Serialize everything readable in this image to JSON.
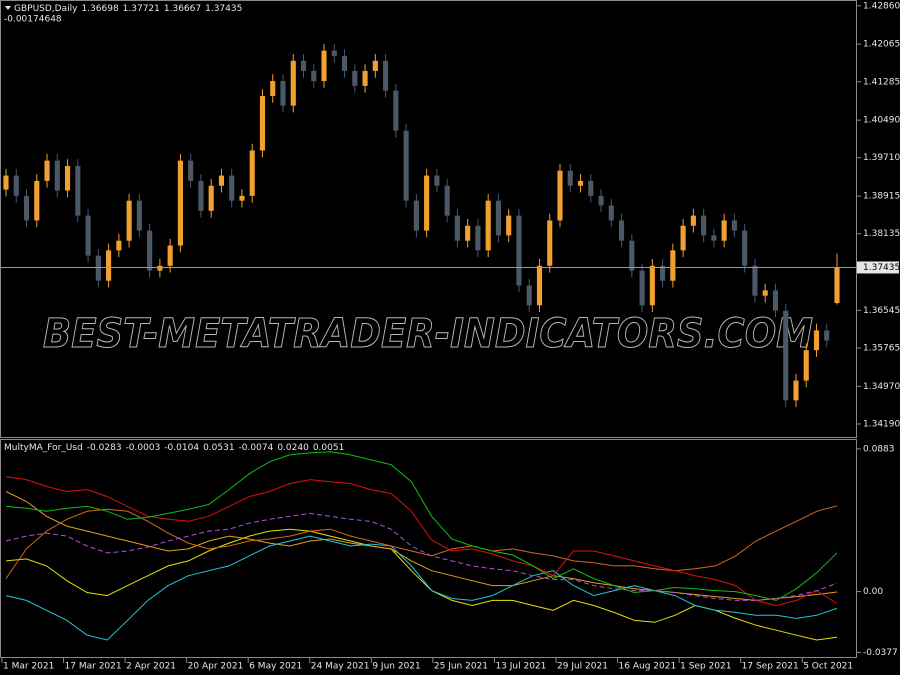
{
  "chart_data": [
    {
      "type": "candlestick",
      "symbol": "GBPUSD,Daily",
      "info_value": -0.00174648,
      "watermark": "BEST-METATRADER-INDICATORS.COM",
      "up_color": "#f0a030",
      "down_color": "#4b5867",
      "price_line_color": "#9a9a9a",
      "categories": [
        "1 Mar 2021",
        null,
        null,
        null,
        null,
        null,
        "17 Mar 2021",
        null,
        null,
        null,
        null,
        null,
        "2 Apr 2021",
        null,
        null,
        null,
        null,
        null,
        "20 Apr 2021",
        null,
        null,
        null,
        null,
        null,
        "6 May 2021",
        null,
        null,
        null,
        null,
        null,
        "24 May 2021",
        null,
        null,
        null,
        null,
        null,
        "9 Jun 2021",
        null,
        null,
        null,
        null,
        null,
        "25 Jun 2021",
        null,
        null,
        null,
        null,
        null,
        "13 Jul 2021",
        null,
        null,
        null,
        null,
        null,
        "29 Jul 2021",
        null,
        null,
        null,
        null,
        null,
        "16 Aug 2021",
        null,
        null,
        null,
        null,
        null,
        "1 Sep 2021",
        null,
        null,
        null,
        null,
        null,
        "17 Sep 2021",
        null,
        null,
        null,
        null,
        null,
        "5 Oct 2021",
        null,
        null,
        null
      ],
      "open": [
        1.3905,
        1.3934,
        1.3892,
        1.3841,
        1.3923,
        1.3965,
        1.3903,
        1.3954,
        1.3851,
        1.3768,
        1.3716,
        1.3779,
        1.3799,
        1.3882,
        1.382,
        1.3737,
        1.3747,
        1.3789,
        1.3965,
        1.3923,
        1.3861,
        1.3913,
        1.3934,
        1.3882,
        1.3892,
        1.3986,
        1.4099,
        1.413,
        1.4079,
        1.4172,
        1.4151,
        1.413,
        1.4193,
        1.4182,
        1.4151,
        1.412,
        1.4151,
        1.4172,
        1.411,
        1.4027,
        1.3882,
        1.382,
        1.3934,
        1.3913,
        1.3851,
        1.3799,
        1.383,
        1.3779,
        1.3882,
        1.381,
        1.3851,
        1.3706,
        1.3665,
        1.3747,
        1.3841,
        1.3944,
        1.3913,
        1.3923,
        1.3892,
        1.3872,
        1.3841,
        1.3799,
        1.3737,
        1.3665,
        1.3747,
        1.3716,
        1.3779,
        1.383,
        1.3851,
        1.381,
        1.3799,
        1.3841,
        1.382,
        1.3747,
        1.3685,
        1.3696,
        1.3654,
        1.3468,
        1.3509,
        1.3572,
        1.3613,
        1.36698
      ],
      "high": [
        1.3948,
        1.3948,
        1.3906,
        1.3937,
        1.3979,
        1.3979,
        1.3968,
        1.3968,
        1.3865,
        1.3782,
        1.3793,
        1.3813,
        1.3896,
        1.3896,
        1.3834,
        1.3761,
        1.3803,
        1.3979,
        1.3979,
        1.3937,
        1.3927,
        1.3948,
        1.3948,
        1.3906,
        1.4,
        1.4113,
        1.4144,
        1.4144,
        1.4186,
        1.4186,
        1.4165,
        1.4207,
        1.4207,
        1.4196,
        1.4165,
        1.4165,
        1.4186,
        1.4186,
        1.4124,
        1.4041,
        1.3896,
        1.3948,
        1.3948,
        1.3927,
        1.3865,
        1.3844,
        1.3844,
        1.3896,
        1.3896,
        1.3865,
        1.3865,
        1.372,
        1.3761,
        1.3855,
        1.3958,
        1.3958,
        1.3937,
        1.3937,
        1.3906,
        1.3886,
        1.3855,
        1.3813,
        1.3751,
        1.3761,
        1.3761,
        1.3793,
        1.3844,
        1.3865,
        1.3865,
        1.3824,
        1.3855,
        1.3855,
        1.3834,
        1.3761,
        1.371,
        1.371,
        1.3668,
        1.3523,
        1.3586,
        1.3627,
        1.3627,
        1.37721
      ],
      "low": [
        1.3891,
        1.3878,
        1.3827,
        1.3827,
        1.3909,
        1.3889,
        1.3889,
        1.3837,
        1.3754,
        1.3702,
        1.3702,
        1.3765,
        1.3785,
        1.3806,
        1.3723,
        1.3723,
        1.3733,
        1.3775,
        1.3909,
        1.3847,
        1.3847,
        1.3899,
        1.3868,
        1.3868,
        1.3878,
        1.3972,
        1.4085,
        1.4065,
        1.4065,
        1.4137,
        1.4116,
        1.4116,
        1.4168,
        1.4137,
        1.4106,
        1.4106,
        1.4137,
        1.4096,
        1.4013,
        1.3868,
        1.3806,
        1.3806,
        1.3899,
        1.3837,
        1.3785,
        1.3785,
        1.3765,
        1.3765,
        1.3796,
        1.3796,
        1.3692,
        1.3651,
        1.3651,
        1.3733,
        1.3827,
        1.3899,
        1.3899,
        1.3878,
        1.3858,
        1.3827,
        1.3785,
        1.3723,
        1.3651,
        1.3651,
        1.3702,
        1.3702,
        1.3765,
        1.3816,
        1.3796,
        1.3785,
        1.3785,
        1.3806,
        1.3733,
        1.3671,
        1.3671,
        1.364,
        1.3454,
        1.3454,
        1.3495,
        1.3558,
        1.3578,
        1.36667
      ],
      "close": [
        1.3934,
        1.3892,
        1.3841,
        1.3923,
        1.3965,
        1.3903,
        1.3954,
        1.3851,
        1.3768,
        1.3716,
        1.3779,
        1.3799,
        1.3882,
        1.382,
        1.3737,
        1.3747,
        1.3789,
        1.3965,
        1.3923,
        1.3861,
        1.3913,
        1.3934,
        1.3882,
        1.3892,
        1.3986,
        1.4099,
        1.413,
        1.4079,
        1.4172,
        1.4151,
        1.413,
        1.4193,
        1.4182,
        1.4151,
        1.412,
        1.4151,
        1.4172,
        1.411,
        1.4027,
        1.3882,
        1.382,
        1.3934,
        1.3913,
        1.3851,
        1.3799,
        1.383,
        1.3779,
        1.3882,
        1.381,
        1.3851,
        1.3706,
        1.3665,
        1.3747,
        1.3841,
        1.3944,
        1.3913,
        1.3923,
        1.3892,
        1.3872,
        1.3841,
        1.3799,
        1.3737,
        1.3665,
        1.3747,
        1.3716,
        1.3779,
        1.383,
        1.3851,
        1.381,
        1.3799,
        1.3841,
        1.382,
        1.3747,
        1.3685,
        1.3696,
        1.3654,
        1.3468,
        1.3509,
        1.3572,
        1.3613,
        1.3592,
        1.37435
      ],
      "ylim": [
        1.3392,
        1.4296
      ],
      "yticks": [
        {
          "value": 1.4286,
          "label": "1.42860"
        },
        1.42065,
        1.41285,
        {
          "value": 1.4049,
          "label": "1.40490"
        },
        {
          "value": 1.3971,
          "label": "1.39710"
        },
        1.38915,
        1.38135,
        1.36545,
        1.35765,
        {
          "value": 1.3497,
          "label": "1.34970"
        },
        {
          "value": 1.3419,
          "label": "1.34190"
        }
      ]
    },
    {
      "type": "line",
      "title": "MultyMA_For_Usd",
      "ylim": [
        -0.0405,
        0.0938
      ],
      "yticks": [
        0.0883,
        {
          "value": 0,
          "label": "0.00"
        },
        -0.0377
      ],
      "series": [
        {
          "color": "#e8e000",
          "values": [
            0.019,
            0.0202,
            0.0159,
            0.0067,
            -0.0006,
            -0.0025,
            0.0037,
            0.0098,
            0.0159,
            0.019,
            0.0251,
            0.03,
            0.0343,
            0.0374,
            0.0386,
            0.0374,
            0.0343,
            0.0313,
            0.0282,
            0.0264,
            0.0129,
            0.0006,
            -0.0055,
            -0.0086,
            -0.0055,
            -0.0055,
            -0.0086,
            -0.0116,
            -0.0055,
            -0.0086,
            -0.0129,
            -0.0178,
            -0.019,
            -0.0147,
            -0.0086,
            -0.0116,
            -0.0166,
            -0.0208,
            -0.0239,
            -0.027,
            -0.03,
            -0.0283
          ]
        },
        {
          "color": "#e0a020",
          "values": [
            0.0619,
            0.0558,
            0.0466,
            0.0405,
            0.0374,
            0.0343,
            0.0313,
            0.0282,
            0.0251,
            0.0264,
            0.0313,
            0.0343,
            0.0325,
            0.03,
            0.0282,
            0.0313,
            0.0325,
            0.03,
            0.0282,
            0.0264,
            0.019,
            0.0129,
            0.0098,
            0.0067,
            0.0037,
            0.0037,
            0.0067,
            0.0098,
            0.008,
            0.0055,
            0.0037,
            0.0018,
            0.0006,
            -0.0006,
            -0.0018,
            -0.0031,
            -0.0043,
            -0.0055,
            -0.0043,
            -0.0031,
            -0.0018,
            -0.0003
          ]
        },
        {
          "color": "#20c8d8",
          "values": [
            -0.0025,
            -0.0055,
            -0.0116,
            -0.0178,
            -0.027,
            -0.03,
            -0.0178,
            -0.0055,
            0.0037,
            0.0098,
            0.0129,
            0.0159,
            0.0221,
            0.0282,
            0.0313,
            0.0343,
            0.0313,
            0.0282,
            0.0294,
            0.0282,
            0.0159,
            0.0006,
            -0.0043,
            -0.0055,
            -0.0025,
            0.0037,
            0.0098,
            0.0129,
            0.0037,
            -0.0025,
            0.0006,
            0.0037,
            0.0006,
            -0.0025,
            -0.0086,
            -0.0116,
            -0.0129,
            -0.0147,
            -0.0147,
            -0.0166,
            -0.0147,
            -0.0104
          ]
        },
        {
          "color": "#d2691e",
          "values": [
            0.008,
            0.0264,
            0.0374,
            0.0447,
            0.0497,
            0.0509,
            0.0497,
            0.0435,
            0.0362,
            0.03,
            0.0264,
            0.0282,
            0.0313,
            0.0325,
            0.0343,
            0.0374,
            0.0386,
            0.0343,
            0.0313,
            0.0282,
            0.0251,
            0.0221,
            0.0264,
            0.0282,
            0.0251,
            0.0264,
            0.0239,
            0.0221,
            0.019,
            0.0178,
            0.0159,
            0.0159,
            0.0141,
            0.0129,
            0.0141,
            0.0159,
            0.0221,
            0.0313,
            0.0374,
            0.0435,
            0.0497,
            0.0531
          ]
        },
        {
          "color": "#e01010",
          "values": [
            0.0711,
            0.0693,
            0.065,
            0.0619,
            0.0631,
            0.0588,
            0.0527,
            0.0466,
            0.0447,
            0.0435,
            0.0466,
            0.0527,
            0.0588,
            0.0619,
            0.0668,
            0.0693,
            0.068,
            0.0668,
            0.0631,
            0.0607,
            0.0497,
            0.0319,
            0.0251,
            0.0264,
            0.0233,
            0.019,
            0.0159,
            0.0098,
            0.0251,
            0.0251,
            0.0221,
            0.019,
            0.0159,
            0.0129,
            0.0098,
            0.0074,
            0.0037,
            -0.0055,
            -0.0086,
            -0.0055,
            0.0006,
            -0.0074
          ]
        },
        {
          "color": "#10c010",
          "values": [
            0.0527,
            0.0515,
            0.0497,
            0.0515,
            0.0527,
            0.0497,
            0.0447,
            0.046,
            0.0484,
            0.0509,
            0.0539,
            0.0631,
            0.0729,
            0.0803,
            0.0846,
            0.0858,
            0.0865,
            0.0846,
            0.0815,
            0.0785,
            0.068,
            0.0466,
            0.0325,
            0.0282,
            0.0251,
            0.0227,
            0.0159,
            0.008,
            0.0141,
            0.008,
            0.0037,
            -0.0006,
            0.0006,
            0.0025,
            0.0018,
            0.0006,
            0,
            -0.0025,
            -0.0055,
            0.0018,
            0.0116,
            0.024
          ],
          "value_labels": [
            null,
            null,
            null,
            null,
            null,
            null,
            null,
            null,
            null,
            null,
            null,
            null,
            null,
            null,
            null,
            null,
            null,
            null,
            null,
            null,
            null,
            null,
            null,
            null,
            null,
            null,
            null,
            null,
            null,
            null,
            null,
            null,
            null,
            null,
            null,
            null,
            null,
            null,
            null,
            null,
            null,
            "0.0240"
          ]
        },
        {
          "color": "#b050e0",
          "dash": true,
          "values": [
            0.0313,
            0.0343,
            0.0362,
            0.0343,
            0.0282,
            0.0239,
            0.0251,
            0.0276,
            0.0313,
            0.0343,
            0.0374,
            0.0386,
            0.0423,
            0.0447,
            0.0466,
            0.0484,
            0.0466,
            0.0447,
            0.0435,
            0.0386,
            0.0282,
            0.0221,
            0.019,
            0.0159,
            0.0141,
            0.0129,
            0.0098,
            0.0074,
            0.0074,
            0.0037,
            0.0018,
            0.0006,
            0.0006,
            -0.0006,
            -0.0025,
            -0.0043,
            -0.0055,
            -0.0055,
            -0.0043,
            -0.0025,
            0.0006,
            0.0051
          ]
        }
      ]
    }
  ]
}
